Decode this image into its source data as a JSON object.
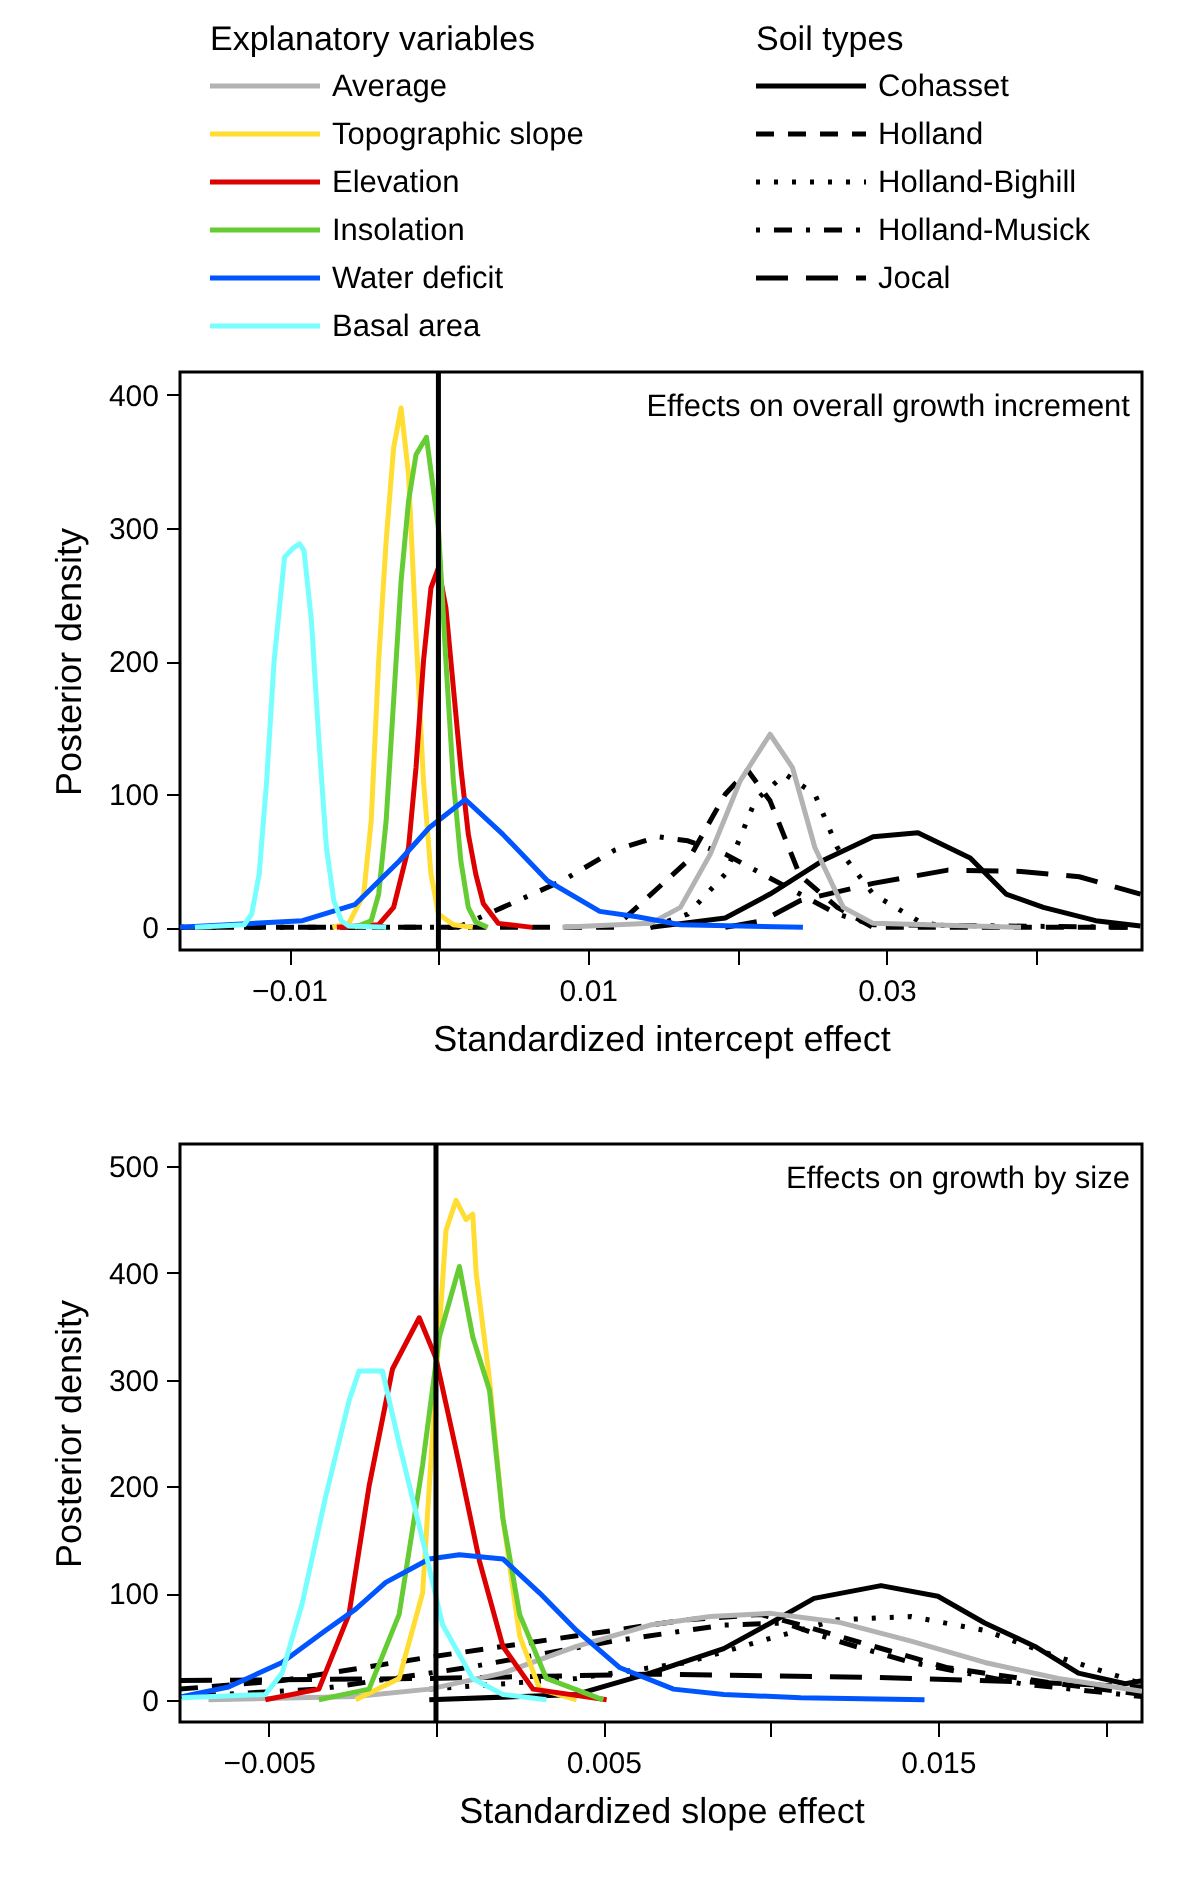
{
  "chart_data": [
    {
      "type": "line",
      "xlabel": "Standardized intercept effect",
      "ylabel": "Posterior density",
      "legend": "top",
      "legend_title": "Explanatory variables",
      "annotations": [
        "Effects on overall growth increment"
      ],
      "xlim": [
        -0.0173,
        0.0471
      ],
      "ylim": [
        -17,
        417
      ],
      "xticks": [
        {
          "value": -0.01,
          "label": "−0.01"
        },
        {
          "value": 0,
          "label": null
        },
        {
          "value": 0.01,
          "label": "0.01"
        },
        {
          "value": 0.02,
          "label": null
        },
        {
          "value": 0.03,
          "label": "0.03"
        },
        {
          "value": 0.04,
          "label": null
        }
      ],
      "yticks": [
        0,
        100,
        200,
        300,
        400
      ],
      "ref_lines": [
        {
          "axis": "x",
          "value": 0,
          "color": "#000000"
        }
      ],
      "series": [
        {
          "name": "Average",
          "color": "#b3b3b3",
          "x": [
            0.0083,
            0.0142,
            0.0162,
            0.0182,
            0.0202,
            0.0222,
            0.0237,
            0.0252,
            0.0271,
            0.0291,
            0.039
          ],
          "values": [
            0,
            3,
            15,
            55,
            110,
            145,
            120,
            60,
            15,
            3,
            0
          ]
        },
        {
          "name": "Topographic slope",
          "color": "#ffdd33",
          "x": [
            -0.0071,
            -0.006,
            -0.005,
            -0.0045,
            -0.004,
            -0.0035,
            -0.003,
            -0.0025,
            -0.002,
            -0.0015,
            -0.001,
            -0.0005,
            0,
            0.001,
            0.0023
          ],
          "values": [
            0,
            3,
            25,
            80,
            200,
            290,
            360,
            390,
            340,
            220,
            110,
            40,
            10,
            2,
            0
          ]
        },
        {
          "name": "Elevation",
          "color": "#dd0000",
          "x": [
            -0.0068,
            -0.004,
            -0.003,
            -0.002,
            -0.0015,
            -0.001,
            -0.0005,
            0,
            0.0005,
            0.001,
            0.0015,
            0.002,
            0.0025,
            0.003,
            0.004,
            0.0063
          ],
          "values": [
            0,
            2,
            15,
            60,
            120,
            200,
            255,
            270,
            240,
            180,
            120,
            70,
            40,
            18,
            3,
            0
          ]
        },
        {
          "name": "Insolation",
          "color": "#66cc33",
          "x": [
            -0.0056,
            -0.0045,
            -0.004,
            -0.0035,
            -0.003,
            -0.0025,
            -0.002,
            -0.0015,
            -0.0008,
            0,
            0.0005,
            0.001,
            0.0015,
            0.002,
            0.0025,
            0.0033
          ],
          "values": [
            0,
            5,
            25,
            80,
            170,
            260,
            320,
            355,
            368,
            300,
            200,
            110,
            50,
            15,
            4,
            0
          ]
        },
        {
          "name": "Water deficit",
          "color": "#0055ff",
          "x": [
            -0.0173,
            -0.0091,
            -0.0056,
            -0.0026,
            -0.0006,
            0.0018,
            0.0043,
            0.0073,
            0.0108,
            0.0133,
            0.0162,
            0.0244
          ],
          "values": [
            0,
            5,
            17,
            50,
            75,
            96,
            70,
            35,
            12,
            8,
            2,
            0
          ]
        },
        {
          "name": "Basal area",
          "color": "#77ffff",
          "x": [
            -0.0163,
            -0.013,
            -0.0125,
            -0.012,
            -0.0115,
            -0.011,
            -0.0103,
            -0.0097,
            -0.0093,
            -0.009,
            -0.0085,
            -0.008,
            -0.0075,
            -0.007,
            -0.0065,
            -0.006,
            -0.0035
          ],
          "values": [
            0,
            2,
            10,
            40,
            110,
            200,
            278,
            285,
            288,
            283,
            230,
            140,
            60,
            20,
            5,
            1,
            0
          ]
        },
        {
          "name": "Cohasset",
          "color": "#000000",
          "line_style": "solid",
          "x": [
            0.0142,
            0.0192,
            0.0222,
            0.0257,
            0.0291,
            0.0321,
            0.0356,
            0.038,
            0.0405,
            0.044,
            0.047
          ],
          "values": [
            0,
            7,
            25,
            50,
            68,
            71,
            52,
            25,
            15,
            5,
            1
          ]
        },
        {
          "name": "Holland",
          "color": "#000000",
          "line_style": "dashed",
          "x": [
            -0.0173,
            0.0118,
            0.0167,
            0.0192,
            0.0207,
            0.0222,
            0.0242,
            0.0267,
            0.0291,
            0.047
          ],
          "values": [
            0,
            0,
            50,
            100,
            118,
            95,
            39,
            15,
            0,
            0
          ]
        },
        {
          "name": "Holland-Bighill",
          "color": "#000000",
          "line_style": "dotted",
          "x": [
            0.0142,
            0.0167,
            0.0192,
            0.0212,
            0.0232,
            0.0252,
            0.0267,
            0.0291,
            0.0321,
            0.034
          ],
          "values": [
            0,
            10,
            40,
            95,
            115,
            100,
            60,
            25,
            5,
            0
          ]
        },
        {
          "name": "Holland-Musick",
          "color": "#000000",
          "line_style": "dashdot",
          "x": [
            -0.0173,
            0.0013,
            0.0043,
            0.0083,
            0.0118,
            0.0147,
            0.0167,
            0.0192,
            0.0217,
            0.0242,
            0.0267,
            0.0291,
            0.047
          ],
          "values": [
            0,
            0,
            15,
            35,
            58,
            68,
            65,
            55,
            40,
            25,
            10,
            2,
            0
          ]
        },
        {
          "name": "Jocal",
          "color": "#000000",
          "line_style": "longdash",
          "x": [
            0.0192,
            0.0217,
            0.0242,
            0.0291,
            0.0341,
            0.039,
            0.0429,
            0.047
          ],
          "values": [
            0,
            5,
            20,
            33,
            43,
            42,
            38,
            25
          ]
        }
      ]
    },
    {
      "type": "line",
      "xlabel": "Standardized slope effect",
      "ylabel": "Posterior density",
      "legend_title": "Soil types",
      "annotations": [
        "Effects on growth by size"
      ],
      "xlim": [
        -0.00765,
        0.0211
      ],
      "ylim": [
        -20.8,
        520.8
      ],
      "xticks": [
        {
          "value": -0.005,
          "label": "−0.005"
        },
        {
          "value": 0,
          "label": null
        },
        {
          "value": 0.005,
          "label": "0.005"
        },
        {
          "value": 0.01,
          "label": null
        },
        {
          "value": 0.015,
          "label": "0.015"
        },
        {
          "value": 0.02,
          "label": null
        }
      ],
      "yticks": [
        0,
        100,
        200,
        300,
        400,
        500
      ],
      "ref_lines": [
        {
          "axis": "x",
          "value": 0,
          "color": "#000000"
        }
      ],
      "series": [
        {
          "color": "#b3b3b3",
          "x": [
            -0.0068,
            -0.0024,
            -0.0002,
            0.002,
            0.0042,
            0.0064,
            0.0082,
            0.01,
            0.012,
            0.0142,
            0.0164,
            0.0186,
            0.0211
          ],
          "values": [
            0,
            3,
            10,
            25,
            50,
            70,
            78,
            81,
            73,
            55,
            35,
            20,
            8
          ]
        },
        {
          "color": "#ffdd33",
          "x": [
            -0.0024,
            -0.0011,
            -0.0004,
            0,
            0.0003,
            0.0006,
            0.0009,
            0.0011,
            0.0012,
            0.0016,
            0.002,
            0.0025,
            0.0031,
            0.0042
          ],
          "values": [
            0,
            20,
            100,
            300,
            440,
            468,
            450,
            455,
            400,
            300,
            170,
            60,
            10,
            0
          ]
        },
        {
          "color": "#dd0000",
          "x": [
            -0.0051,
            -0.0035,
            -0.0026,
            -0.002,
            -0.0013,
            -0.0005,
            0,
            0.0007,
            0.0013,
            0.002,
            0.0029,
            0.0051
          ],
          "values": [
            0,
            10,
            80,
            200,
            310,
            358,
            320,
            220,
            130,
            50,
            10,
            0
          ]
        },
        {
          "color": "#66cc33",
          "x": [
            -0.0035,
            -0.002,
            -0.0011,
            -0.0004,
            0.0001,
            0.0007,
            0.0011,
            0.0016,
            0.002,
            0.0025,
            0.0033,
            0.005
          ],
          "values": [
            0,
            10,
            80,
            220,
            340,
            406,
            340,
            290,
            170,
            80,
            20,
            0
          ]
        },
        {
          "color": "#0055ff",
          "x": [
            -0.0076,
            -0.0062,
            -0.0046,
            -0.0033,
            -0.0024,
            -0.0015,
            -0.0002,
            0.0007,
            0.002,
            0.0031,
            0.0042,
            0.0055,
            0.0071,
            0.0086,
            0.0109,
            0.0146
          ],
          "values": [
            3,
            12,
            35,
            65,
            85,
            110,
            132,
            136,
            132,
            100,
            65,
            30,
            10,
            5,
            2,
            0
          ]
        },
        {
          "color": "#77ffff",
          "x": [
            -0.0076,
            -0.0051,
            -0.0046,
            -0.004,
            -0.0033,
            -0.0026,
            -0.0023,
            -0.0016,
            -0.0011,
            -0.0004,
            0.0002,
            0.0011,
            0.002,
            0.0033
          ],
          "values": [
            2,
            5,
            25,
            90,
            190,
            280,
            308,
            308,
            240,
            150,
            70,
            20,
            5,
            0
          ]
        },
        {
          "color": "#000000",
          "line_style": "solid",
          "x": [
            -0.0002,
            0.0042,
            0.0064,
            0.0086,
            0.01,
            0.0113,
            0.0133,
            0.015,
            0.0164,
            0.0179,
            0.0192,
            0.0206,
            0.0211
          ],
          "values": [
            0,
            5,
            25,
            48,
            72,
            95,
            107,
            97,
            72,
            50,
            25,
            15,
            18
          ]
        },
        {
          "color": "#000000",
          "line_style": "dashed",
          "x": [
            -0.00765,
            -0.0046,
            -0.0002,
            0.0042,
            0.0075,
            0.0097,
            0.0109,
            0.0131,
            0.0153,
            0.0186,
            0.0211
          ],
          "values": [
            10,
            18,
            40,
            60,
            75,
            80,
            70,
            50,
            30,
            15,
            5
          ]
        },
        {
          "color": "#000000",
          "line_style": "dotted",
          "x": [
            -0.0002,
            0.0042,
            0.0075,
            0.0097,
            0.012,
            0.0142,
            0.0164,
            0.0186,
            0.0211
          ],
          "values": [
            10,
            20,
            35,
            55,
            75,
            78,
            65,
            40,
            15
          ]
        },
        {
          "color": "#000000",
          "line_style": "dashdot",
          "x": [
            -0.00765,
            -0.0035,
            0.0009,
            0.0053,
            0.0086,
            0.0104,
            0.012,
            0.0142,
            0.0175,
            0.0211
          ],
          "values": [
            3,
            10,
            30,
            55,
            70,
            72,
            55,
            35,
            15,
            3
          ]
        },
        {
          "color": "#000000",
          "line_style": "longdash",
          "x": [
            -0.00765,
            -0.0002,
            0.0064,
            0.0131,
            0.0175,
            0.0211
          ],
          "values": [
            18,
            20,
            24,
            21,
            17,
            12
          ]
        }
      ]
    }
  ]
}
